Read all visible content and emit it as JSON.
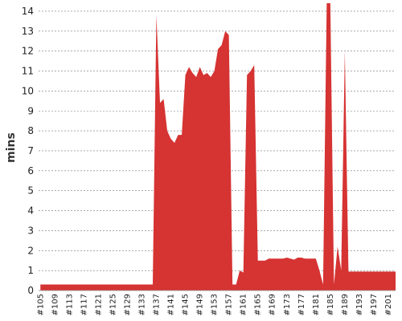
{
  "chart_data": {
    "type": "area",
    "title": "",
    "xlabel": "",
    "ylabel": "mins",
    "ylim": [
      0,
      14.4
    ],
    "xlim": [
      104.5,
      203
    ],
    "grid": true,
    "color": "#d63333",
    "yticks": [
      0,
      1,
      2,
      3,
      4,
      5,
      6,
      7,
      8,
      9,
      10,
      11,
      12,
      13,
      14
    ],
    "xticks": [
      105,
      109,
      113,
      117,
      121,
      125,
      129,
      133,
      137,
      141,
      145,
      149,
      153,
      157,
      161,
      165,
      169,
      173,
      177,
      181,
      185,
      189,
      193,
      197,
      201
    ],
    "x_tick_prefix": "#",
    "series": [
      {
        "values_by_build": [
          [
            105,
            0.3
          ],
          [
            106,
            0.3
          ],
          [
            107,
            0.3
          ],
          [
            108,
            0.3
          ],
          [
            109,
            0.3
          ],
          [
            110,
            0.3
          ],
          [
            111,
            0.3
          ],
          [
            112,
            0.3
          ],
          [
            113,
            0.3
          ],
          [
            114,
            0.3
          ],
          [
            115,
            0.3
          ],
          [
            116,
            0.3
          ],
          [
            117,
            0.3
          ],
          [
            118,
            0.3
          ],
          [
            119,
            0.3
          ],
          [
            120,
            0.3
          ],
          [
            121,
            0.3
          ],
          [
            122,
            0.3
          ],
          [
            123,
            0.3
          ],
          [
            124,
            0.3
          ],
          [
            125,
            0.3
          ],
          [
            126,
            0.3
          ],
          [
            127,
            0.3
          ],
          [
            128,
            0.3
          ],
          [
            129,
            0.3
          ],
          [
            130,
            0.3
          ],
          [
            131,
            0.3
          ],
          [
            132,
            0.3
          ],
          [
            133,
            0.3
          ],
          [
            134,
            0.3
          ],
          [
            135,
            0.3
          ],
          [
            136,
            0.3
          ],
          [
            137,
            13.8
          ],
          [
            138,
            9.4
          ],
          [
            139,
            9.6
          ],
          [
            140,
            8.0
          ],
          [
            141,
            7.6
          ],
          [
            142,
            7.4
          ],
          [
            143,
            7.8
          ],
          [
            144,
            7.8
          ],
          [
            145,
            10.8
          ],
          [
            146,
            11.2
          ],
          [
            147,
            10.9
          ],
          [
            148,
            10.7
          ],
          [
            149,
            11.2
          ],
          [
            150,
            10.8
          ],
          [
            151,
            10.9
          ],
          [
            152,
            10.7
          ],
          [
            153,
            11.0
          ],
          [
            154,
            12.1
          ],
          [
            155,
            12.3
          ],
          [
            156,
            13.0
          ],
          [
            157,
            12.8
          ],
          [
            158,
            0.3
          ],
          [
            159,
            0.3
          ],
          [
            160,
            1.0
          ],
          [
            161,
            0.9
          ],
          [
            162,
            10.8
          ],
          [
            163,
            11.0
          ],
          [
            164,
            11.3
          ],
          [
            165,
            1.5
          ],
          [
            166,
            1.5
          ],
          [
            167,
            1.5
          ],
          [
            168,
            1.6
          ],
          [
            169,
            1.6
          ],
          [
            170,
            1.6
          ],
          [
            171,
            1.6
          ],
          [
            172,
            1.6
          ],
          [
            173,
            1.65
          ],
          [
            174,
            1.6
          ],
          [
            175,
            1.55
          ],
          [
            176,
            1.65
          ],
          [
            177,
            1.65
          ],
          [
            178,
            1.6
          ],
          [
            179,
            1.6
          ],
          [
            180,
            1.6
          ],
          [
            181,
            1.6
          ],
          [
            182,
            1.0
          ],
          [
            183,
            0.3
          ],
          [
            184,
            14.4
          ],
          [
            185,
            14.4
          ],
          [
            186,
            0.3
          ],
          [
            187,
            2.2
          ],
          [
            188,
            1.0
          ],
          [
            189,
            12.0
          ],
          [
            190,
            0.95
          ],
          [
            191,
            0.95
          ],
          [
            192,
            0.95
          ],
          [
            193,
            0.95
          ],
          [
            194,
            0.95
          ],
          [
            195,
            0.95
          ],
          [
            196,
            0.95
          ],
          [
            197,
            0.95
          ],
          [
            198,
            0.95
          ],
          [
            199,
            0.95
          ],
          [
            200,
            0.95
          ],
          [
            201,
            0.95
          ],
          [
            202,
            0.95
          ],
          [
            203,
            0.95
          ]
        ]
      }
    ]
  }
}
